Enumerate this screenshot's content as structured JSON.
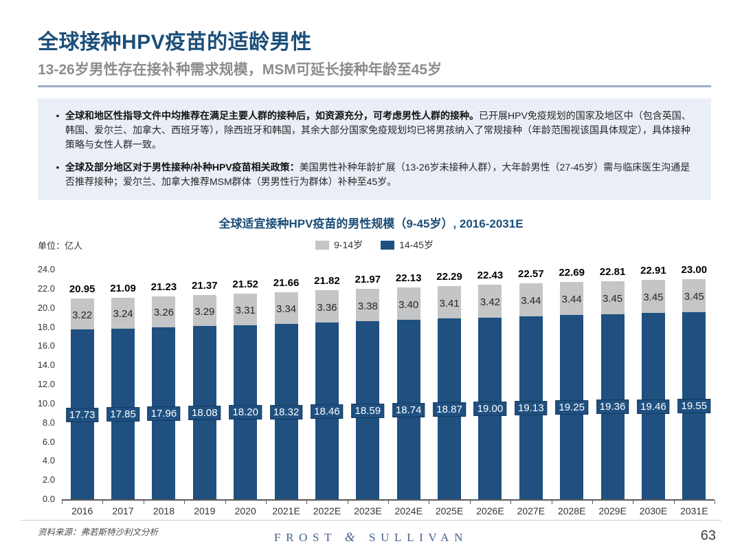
{
  "header": {
    "title": "全球接种HPV疫苗的适龄男性",
    "subtitle": "13-26岁男性存在接补种需求规模，MSM可延长接种年龄至45岁"
  },
  "bullets": [
    {
      "bold": "全球和地区性指导文件中均推荐在满足主要人群的接种后，如资源充分，可考虑男性人群的接种。",
      "text": "已开展HPV免疫规划的国家及地区中（包含英国、韩国、爱尔兰、加拿大、西班牙等），除西班牙和韩国，其余大部分国家免疫规划均已将男孩纳入了常规接种（年龄范围视该国具体规定），具体接种策略与女性人群一致。"
    },
    {
      "bold": "全球及部分地区对于男性接种/补种HPV疫苗相关政策：",
      "text": "美国男性补种年龄扩展（13-26岁未接种人群），大年龄男性（27-45岁）需与临床医生沟通是否推荐接种；爱尔兰、加拿大推荐MSM群体（男男性行为群体）补种至45岁。"
    }
  ],
  "chart": {
    "title": "全球适宜接种HPV疫苗的男性规模（9-45岁）, 2016-2031E",
    "unit_label": "单位：亿人",
    "legend": [
      {
        "label": "9-14岁",
        "color": "#C4C5C6"
      },
      {
        "label": "14-45岁",
        "color": "#1F5080"
      }
    ]
  },
  "chart_data": {
    "type": "bar",
    "stacked": true,
    "title": "全球适宜接种HPV疫苗的男性规模（9-45岁）, 2016-2031E",
    "ylabel": "单位：亿人",
    "categories": [
      "2016",
      "2017",
      "2018",
      "2019",
      "2020",
      "2021E",
      "2022E",
      "2023E",
      "2024E",
      "2025E",
      "2026E",
      "2027E",
      "2028E",
      "2029E",
      "2030E",
      "2031E"
    ],
    "series": [
      {
        "name": "14-45岁",
        "color": "#1F5080",
        "values": [
          17.73,
          17.85,
          17.96,
          18.08,
          18.2,
          18.32,
          18.46,
          18.59,
          18.74,
          18.87,
          19.0,
          19.13,
          19.25,
          19.36,
          19.46,
          19.55
        ]
      },
      {
        "name": "9-14岁",
        "color": "#C4C5C6",
        "values": [
          3.22,
          3.24,
          3.26,
          3.29,
          3.31,
          3.34,
          3.36,
          3.38,
          3.4,
          3.41,
          3.42,
          3.44,
          3.44,
          3.45,
          3.45,
          3.45
        ]
      }
    ],
    "totals": [
      20.95,
      21.09,
      21.23,
      21.37,
      21.52,
      21.66,
      21.82,
      21.97,
      22.13,
      22.29,
      22.43,
      22.57,
      22.69,
      22.81,
      22.91,
      23.0
    ],
    "ylim": [
      0,
      24
    ],
    "ytick_step": 2.0,
    "grid": false,
    "legend_position": "top"
  },
  "footer": {
    "source": "资料来源：弗若斯特沙利文分析",
    "brand": {
      "left": "FROST",
      "amp": "&",
      "right": "SULLIVAN"
    },
    "page": "63"
  }
}
